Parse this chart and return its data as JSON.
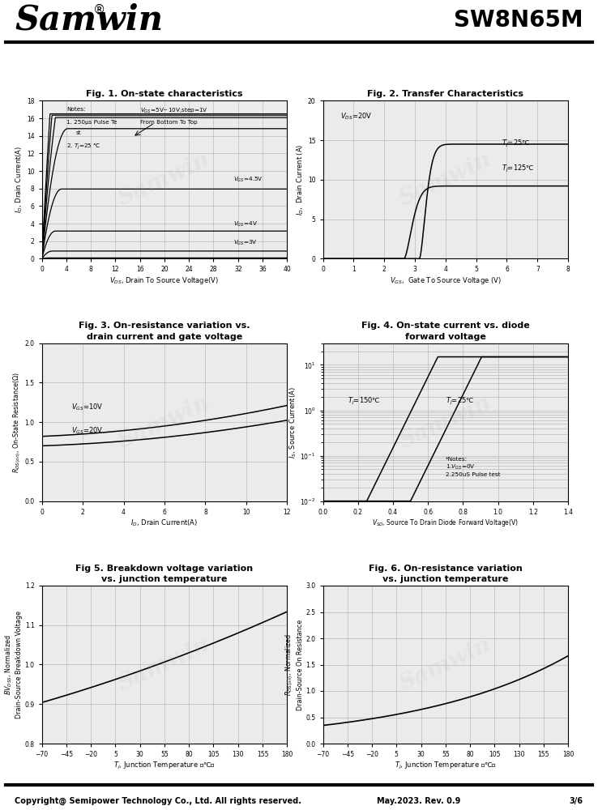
{
  "title_left": "Samwin",
  "title_right": "SW8N65M",
  "fig1_title": "Fig. 1. On-state characteristics",
  "fig2_title": "Fig. 2. Transfer Characteristics",
  "fig3_title_line1": "Fig. 3. On-resistance variation vs.",
  "fig3_title_line2": "drain current and gate voltage",
  "fig4_title_line1": "Fig. 4. On-state current vs. diode",
  "fig4_title_line2": "forward voltage",
  "fig5_title_line1": "Fig 5. Breakdown voltage variation",
  "fig5_title_line2": "vs. junction temperature",
  "fig6_title_line1": "Fig. 6. On-resistance variation",
  "fig6_title_line2": "vs. junction temperature",
  "footer_left": "Copyright@ Semipower Technology Co., Ltd. All rights reserved.",
  "footer_mid": "May.2023. Rev. 0.9",
  "footer_right": "3/6",
  "bg_color": "#ffffff",
  "grid_color": "#bbbbbb",
  "line_color": "#000000",
  "watermark_color": "#aaaaaa",
  "watermark_alpha": 0.12
}
